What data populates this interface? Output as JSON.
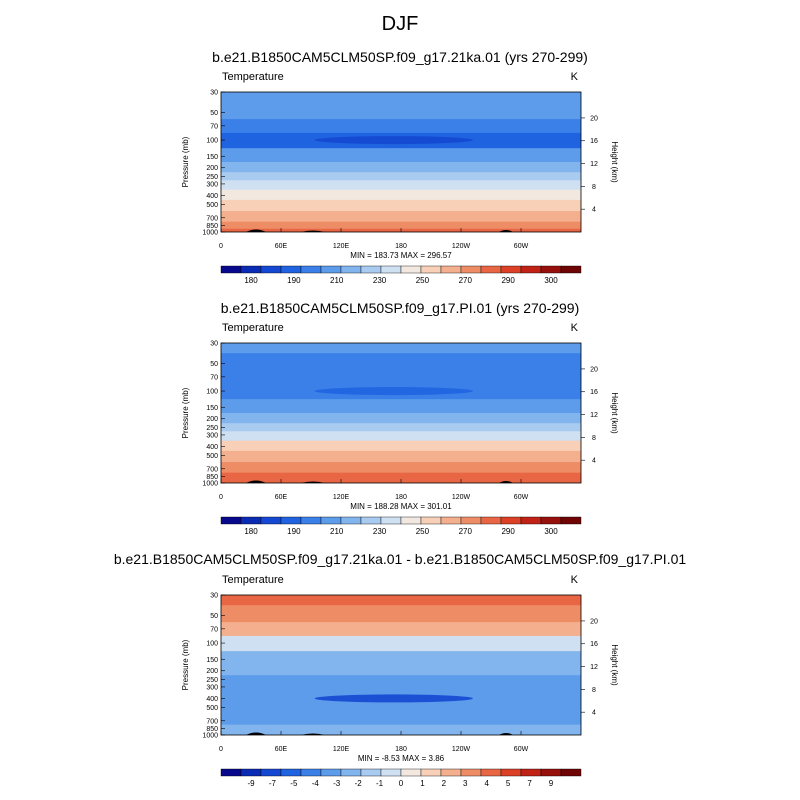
{
  "figure_title": "DJF",
  "chart_data": [
    {
      "type": "heatmap",
      "title": "b.e21.B1850CAM5CLM50SP.f09_g17.21ka.01 (yrs 270-299)",
      "left_label": "Temperature",
      "units": "K",
      "ylabel": "Pressure (mb)",
      "ylabel_right": "Height (km)",
      "x_ticks": [
        "0",
        "60E",
        "120E",
        "180",
        "120W",
        "60W"
      ],
      "y_ticks": [
        "30",
        "50",
        "70",
        "100",
        "150",
        "200",
        "250",
        "300",
        "400",
        "500",
        "700",
        "850",
        "1000"
      ],
      "height_ticks": [
        "20",
        "16",
        "12",
        "8",
        "4"
      ],
      "stats": "MIN = 183.73  MAX = 296.57",
      "colorbar_labels": [
        "180",
        "190",
        "210",
        "230",
        "250",
        "270",
        "290",
        "300"
      ],
      "contour_levels": [
        175,
        180,
        185,
        190,
        200,
        210,
        220,
        230,
        240,
        250,
        260,
        270,
        280,
        290,
        295,
        300,
        305
      ],
      "profile": [
        {
          "p": 30,
          "value": 205
        },
        {
          "p": 50,
          "value": 202
        },
        {
          "p": 70,
          "value": 198
        },
        {
          "p": 100,
          "value": 188
        },
        {
          "p": 150,
          "value": 205
        },
        {
          "p": 200,
          "value": 215
        },
        {
          "p": 250,
          "value": 225
        },
        {
          "p": 300,
          "value": 234
        },
        {
          "p": 400,
          "value": 248
        },
        {
          "p": 500,
          "value": 256
        },
        {
          "p": 700,
          "value": 269
        },
        {
          "p": 850,
          "value": 278
        },
        {
          "p": 1000,
          "value": 283
        }
      ]
    },
    {
      "type": "heatmap",
      "title": "b.e21.B1850CAM5CLM50SP.f09_g17.PI.01 (yrs 270-299)",
      "left_label": "Temperature",
      "units": "K",
      "ylabel": "Pressure (mb)",
      "ylabel_right": "Height (km)",
      "x_ticks": [
        "0",
        "60E",
        "120E",
        "180",
        "120W",
        "60W"
      ],
      "y_ticks": [
        "30",
        "50",
        "70",
        "100",
        "150",
        "200",
        "250",
        "300",
        "400",
        "500",
        "700",
        "850",
        "1000"
      ],
      "height_ticks": [
        "20",
        "16",
        "12",
        "8",
        "4"
      ],
      "stats": "MIN = 188.28  MAX = 301.01",
      "colorbar_labels": [
        "180",
        "190",
        "210",
        "230",
        "250",
        "270",
        "290",
        "300"
      ],
      "contour_levels": [
        175,
        180,
        185,
        190,
        200,
        210,
        220,
        230,
        240,
        250,
        260,
        270,
        280,
        290,
        295,
        300,
        305
      ],
      "profile": [
        {
          "p": 30,
          "value": 205
        },
        {
          "p": 50,
          "value": 200
        },
        {
          "p": 70,
          "value": 196
        },
        {
          "p": 100,
          "value": 192
        },
        {
          "p": 150,
          "value": 202
        },
        {
          "p": 200,
          "value": 216
        },
        {
          "p": 250,
          "value": 228
        },
        {
          "p": 300,
          "value": 238
        },
        {
          "p": 400,
          "value": 252
        },
        {
          "p": 500,
          "value": 262
        },
        {
          "p": 700,
          "value": 275
        },
        {
          "p": 850,
          "value": 284
        },
        {
          "p": 1000,
          "value": 290
        }
      ]
    },
    {
      "type": "heatmap",
      "title": "b.e21.B1850CAM5CLM50SP.f09_g17.21ka.01 - b.e21.B1850CAM5CLM50SP.f09_g17.PI.01",
      "left_label": "Temperature",
      "units": "K",
      "ylabel": "Pressure (mb)",
      "ylabel_right": "Height (km)",
      "x_ticks": [
        "0",
        "60E",
        "120E",
        "180",
        "120W",
        "60W"
      ],
      "y_ticks": [
        "30",
        "50",
        "70",
        "100",
        "150",
        "200",
        "250",
        "300",
        "400",
        "500",
        "700",
        "850",
        "1000"
      ],
      "height_ticks": [
        "20",
        "16",
        "12",
        "8",
        "4"
      ],
      "stats": "MIN = -8.53  MAX =  3.86",
      "colorbar_labels": [
        "-9",
        "-7",
        "-5",
        "-4",
        "-3",
        "-2",
        "-1",
        "0",
        "1",
        "2",
        "3",
        "4",
        "5",
        "7",
        "9"
      ],
      "contour_levels": [
        -10,
        -9,
        -8,
        -7,
        -6,
        -5,
        -4,
        -3,
        -2,
        -1,
        0,
        1,
        2,
        3,
        4,
        5,
        6,
        7,
        8,
        9,
        10
      ],
      "profile": [
        {
          "p": 30,
          "value": 2.5
        },
        {
          "p": 50,
          "value": 2.0
        },
        {
          "p": 70,
          "value": 1.0
        },
        {
          "p": 100,
          "value": -2.5
        },
        {
          "p": 150,
          "value": -4.0
        },
        {
          "p": 200,
          "value": -4.5
        },
        {
          "p": 250,
          "value": -5.0
        },
        {
          "p": 300,
          "value": -5.0
        },
        {
          "p": 400,
          "value": -5.2
        },
        {
          "p": 500,
          "value": -5.2
        },
        {
          "p": 700,
          "value": -5.0
        },
        {
          "p": 850,
          "value": -4.5
        },
        {
          "p": 1000,
          "value": -4.0
        }
      ]
    }
  ],
  "colors": {
    "diverging": [
      "#08088c",
      "#0a2cb4",
      "#1448d2",
      "#2063e0",
      "#3a80e8",
      "#5c9ceb",
      "#82b4ee",
      "#a9cbf0",
      "#cfe0f2",
      "#f2e8e0",
      "#f8d0b8",
      "#f4b08e",
      "#ee8c66",
      "#e86644",
      "#dc4026",
      "#c02216",
      "#96100c",
      "#6e0404"
    ],
    "terrain": "#000000"
  }
}
